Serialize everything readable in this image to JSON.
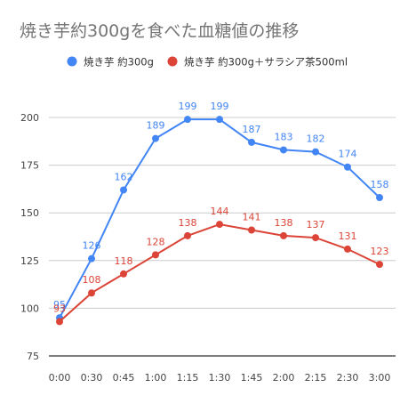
{
  "chart_data": {
    "type": "line",
    "title": "焼き芋約300gを食べた血糖値の推移",
    "categories": [
      "0:00",
      "0:30",
      "0:45",
      "1:00",
      "1:15",
      "1:30",
      "1:45",
      "2:00",
      "2:15",
      "2:30",
      "3:00"
    ],
    "series": [
      {
        "name": "焼き芋 約300g",
        "color": "#4285f4",
        "values": [
          95,
          126,
          162,
          189,
          199,
          199,
          187,
          183,
          182,
          174,
          158
        ]
      },
      {
        "name": "焼き芋 約300g＋サラシア茶500ml",
        "color": "#db4437",
        "values": [
          93,
          108,
          118,
          128,
          138,
          144,
          141,
          138,
          137,
          131,
          123
        ]
      }
    ],
    "ylim": [
      75,
      200
    ],
    "yticks": [
      75,
      100,
      125,
      150,
      175,
      200
    ],
    "grid": true,
    "legend_position": "top",
    "xlabel": "",
    "ylabel": ""
  }
}
